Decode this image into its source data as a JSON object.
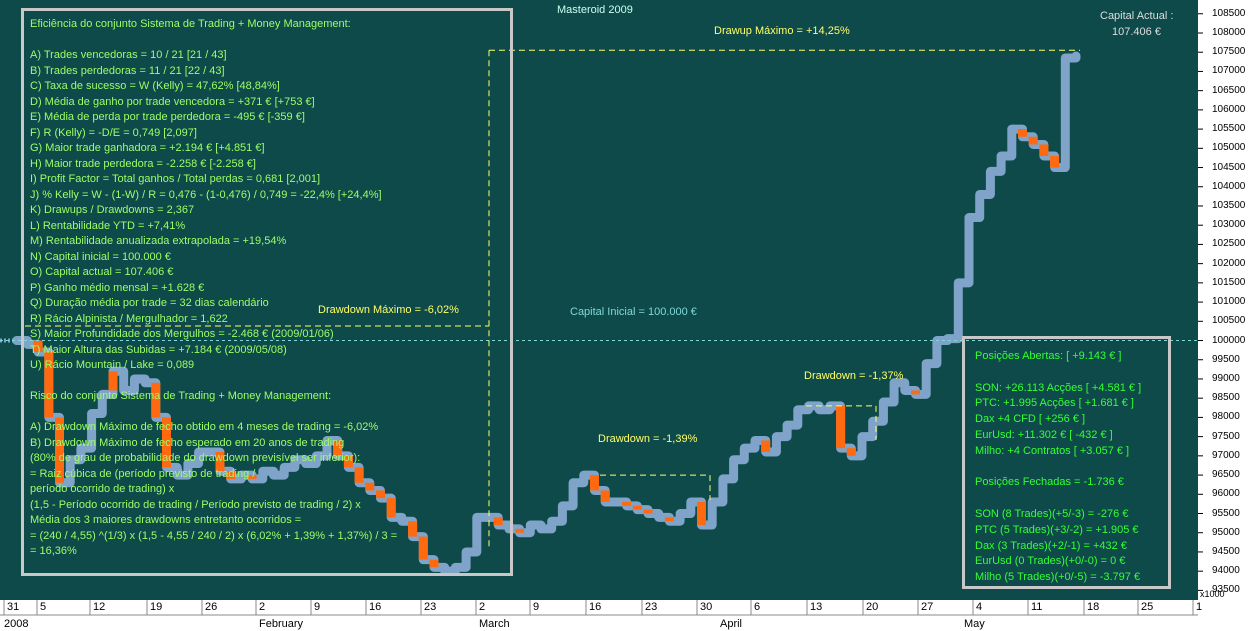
{
  "chart_data": {
    "type": "candlestick-equity",
    "title": "Masteroid 2009",
    "y_unit_label": "x1000",
    "ylim": [
      93250,
      108650
    ],
    "y_ticks": [
      93500,
      94000,
      94500,
      95000,
      95500,
      96000,
      96500,
      97000,
      97500,
      98000,
      98500,
      99000,
      99500,
      100000,
      100500,
      101000,
      101500,
      102000,
      102500,
      103000,
      103500,
      104000,
      104500,
      105000,
      105500,
      106000,
      106500,
      107000,
      107500,
      108000,
      108500
    ],
    "y_tick_labels": [
      "93500",
      "94000",
      "94500",
      "95000",
      "95500",
      "96000",
      "96500",
      "97000",
      "97500",
      "98000",
      "98500",
      "99000",
      "99500",
      "100000",
      "100500",
      "101000",
      "101500",
      "102000",
      "102500",
      "103000",
      "103500",
      "104000",
      "104500",
      "105000",
      "105500",
      "106000",
      "106500",
      "107000",
      "107500",
      "108000",
      "108500"
    ],
    "x_tick_labels": [
      "31",
      "5",
      "12",
      "19",
      "26",
      "2",
      "9",
      "16",
      "23",
      "2",
      "9",
      "16",
      "23",
      "30",
      "6",
      "13",
      "20",
      "27",
      "4",
      "11",
      "18",
      "25",
      "1"
    ],
    "month_labels": [
      "2008",
      "February",
      "March",
      "April",
      "May"
    ],
    "capital_actual_label": "Capital Actual :",
    "capital_actual_value": "107.406 €",
    "capital_inicial_line": 100000,
    "capital_inicial_label": "Capital Inicial = 100.000 €",
    "drawup_max_level": 107550,
    "drawup_max_label": "Drawup Máximo = +14,25%",
    "drawdown_max_label": "Drawdown Máximo = -6,02%",
    "drawdown_1_label": "Drawdown = -1,39%",
    "drawdown_1_level": 96500,
    "drawdown_2_label": "Drawdown = -1,37%",
    "drawdown_2_level": 98300,
    "equity_points": [
      [
        1,
        100000
      ],
      [
        2,
        99900
      ],
      [
        3,
        99700
      ],
      [
        4,
        98000
      ],
      [
        5,
        96300
      ],
      [
        6,
        96900
      ],
      [
        7,
        97200
      ],
      [
        8,
        98100
      ],
      [
        9,
        98600
      ],
      [
        10,
        99200
      ],
      [
        11,
        98700
      ],
      [
        12,
        99000
      ],
      [
        13,
        98900
      ],
      [
        14,
        98000
      ],
      [
        15,
        96700
      ],
      [
        16,
        96500
      ],
      [
        17,
        96800
      ],
      [
        18,
        97100
      ],
      [
        19,
        97100
      ],
      [
        20,
        96600
      ],
      [
        21,
        96400
      ],
      [
        22,
        96500
      ],
      [
        23,
        96400
      ],
      [
        24,
        96600
      ],
      [
        25,
        96500
      ],
      [
        26,
        96700
      ],
      [
        27,
        96900
      ],
      [
        28,
        96800
      ],
      [
        29,
        97000
      ],
      [
        30,
        97400
      ],
      [
        31,
        97000
      ],
      [
        32,
        96700
      ],
      [
        33,
        96300
      ],
      [
        34,
        96100
      ],
      [
        35,
        95900
      ],
      [
        36,
        95400
      ],
      [
        37,
        95300
      ],
      [
        38,
        94900
      ],
      [
        39,
        94300
      ],
      [
        40,
        94100
      ],
      [
        41,
        94000
      ],
      [
        42,
        94100
      ],
      [
        43,
        94500
      ],
      [
        44,
        95400
      ],
      [
        45,
        95400
      ],
      [
        46,
        95200
      ],
      [
        47,
        95100
      ],
      [
        48,
        95000
      ],
      [
        49,
        95200
      ],
      [
        50,
        95100
      ],
      [
        51,
        95300
      ],
      [
        52,
        95700
      ],
      [
        53,
        96300
      ],
      [
        54,
        96500
      ],
      [
        55,
        96100
      ],
      [
        56,
        95800
      ],
      [
        57,
        95800
      ],
      [
        58,
        95700
      ],
      [
        59,
        95600
      ],
      [
        60,
        95500
      ],
      [
        61,
        95400
      ],
      [
        62,
        95300
      ],
      [
        63,
        95500
      ],
      [
        64,
        95800
      ],
      [
        65,
        95200
      ],
      [
        66,
        95800
      ],
      [
        67,
        96400
      ],
      [
        68,
        96900
      ],
      [
        69,
        97200
      ],
      [
        70,
        97400
      ],
      [
        71,
        97100
      ],
      [
        72,
        97500
      ],
      [
        73,
        97800
      ],
      [
        74,
        98200
      ],
      [
        75,
        98300
      ],
      [
        76,
        98200
      ],
      [
        77,
        98300
      ],
      [
        78,
        97200
      ],
      [
        79,
        97000
      ],
      [
        80,
        97500
      ],
      [
        81,
        97900
      ],
      [
        82,
        98400
      ],
      [
        83,
        98900
      ],
      [
        84,
        98700
      ],
      [
        85,
        98600
      ],
      [
        86,
        99400
      ],
      [
        87,
        100000
      ],
      [
        88,
        100050
      ],
      [
        89,
        101500
      ],
      [
        90,
        103200
      ],
      [
        91,
        103800
      ],
      [
        92,
        104400
      ],
      [
        93,
        104800
      ],
      [
        94,
        105500
      ],
      [
        95,
        105300
      ],
      [
        96,
        105100
      ],
      [
        97,
        104800
      ],
      [
        98,
        104500
      ],
      [
        99,
        107350
      ],
      [
        100,
        107400
      ]
    ],
    "drawdown_highlights": [
      [
        3,
        [
          99700,
          100000
        ]
      ],
      [
        4,
        [
          98000,
          99700
        ]
      ],
      [
        5,
        [
          96300,
          98000
        ]
      ],
      [
        10,
        [
          98700,
          99200
        ]
      ],
      [
        14,
        [
          98000,
          98900
        ]
      ],
      [
        15,
        [
          96700,
          98000
        ]
      ],
      [
        20,
        [
          96600,
          97100
        ]
      ],
      [
        21,
        [
          96400,
          96600
        ]
      ],
      [
        23,
        [
          96400,
          96500
        ]
      ],
      [
        31,
        [
          97000,
          97400
        ]
      ],
      [
        32,
        [
          96700,
          97000
        ]
      ],
      [
        33,
        [
          96300,
          96700
        ]
      ],
      [
        34,
        [
          96100,
          96300
        ]
      ],
      [
        35,
        [
          95900,
          96100
        ]
      ],
      [
        36,
        [
          95400,
          95900
        ]
      ],
      [
        38,
        [
          94900,
          95300
        ]
      ],
      [
        39,
        [
          94300,
          94900
        ]
      ],
      [
        40,
        [
          94100,
          94300
        ]
      ],
      [
        46,
        [
          95200,
          95400
        ]
      ],
      [
        48,
        [
          95000,
          95100
        ]
      ],
      [
        55,
        [
          96100,
          96500
        ]
      ],
      [
        56,
        [
          95800,
          96100
        ]
      ],
      [
        58,
        [
          95700,
          95800
        ]
      ],
      [
        59,
        [
          95600,
          95700
        ]
      ],
      [
        60,
        [
          95500,
          95600
        ]
      ],
      [
        62,
        [
          95300,
          95400
        ]
      ],
      [
        65,
        [
          95200,
          95800
        ]
      ],
      [
        71,
        [
          97100,
          97400
        ]
      ],
      [
        78,
        [
          97200,
          98300
        ]
      ],
      [
        79,
        [
          97000,
          97200
        ]
      ],
      [
        85,
        [
          98600,
          98700
        ]
      ],
      [
        95,
        [
          105300,
          105500
        ]
      ],
      [
        96,
        [
          105100,
          105300
        ]
      ],
      [
        97,
        [
          104800,
          105100
        ]
      ],
      [
        98,
        [
          104500,
          104800
        ]
      ]
    ]
  },
  "left_panel": {
    "lines": [
      "Eficiência do conjunto Sistema de Trading + Money Management:",
      "",
      "A) Trades vencedoras = 10 / 21   [21 / 43]",
      "B) Trades perdedoras = 11 / 21   [22 / 43]",
      "C) Taxa de sucesso = W (Kelly) = 47,62%   [48,84%]",
      "D) Média de ganho por trade vencedora = +371 €   [+753 €]",
      "E) Média de perda por trade perdedora = -495 €   [-359 €]",
      "F) R (Kelly) = -D/E = 0,749   [2,097]",
      "G) Maior trade ganhadora = +2.194 €   [+4.851 €]",
      "H) Maior trade perdedora = -2.258 €   [-2.258 €]",
      "I) Profit Factor = Total ganhos / Total perdas = 0,681   [2,001]",
      "J) % Kelly = W - (1-W) / R = 0,476 - (1-0,476) / 0,749 = -22,4%   [+24,4%]",
      "K) Drawups / Drawdowns = 2,367",
      "L) Rentabilidade YTD = +7,41%",
      "M) Rentabilidade anualizada extrapolada = +19,54%",
      "N) Capital inicial = 100.000 €",
      "O) Capital actual = 107.406 €",
      "P) Ganho médio mensal = +1.628 €",
      "Q) Duração média por trade = 32 dias calendário",
      "R) Rácio Alpinista / Mergulhador = 1,622",
      "S) Maior Profundidade dos Mergulhos = -2.468 € (2009/01/06)",
      "T) Maior Altura das Subidas = +7.184 € (2009/05/08)",
      "U) Rácio Mountain / Lake = 0,089",
      "",
      "Risco do conjunto Sistema de Trading + Money Management:",
      "",
      "A) Drawdown Máximo de fecho obtido em 4 meses de trading = -6,02%",
      "B) Drawdown Máximo de fecho esperado em 20 anos de trading",
      "(80% de grau de probabilidade do drawdown previsível ser inferior):",
      "= Raiz cúbica de (período previsto de trading /",
      "período ocorrido de trading) x",
      "(1,5 - Período ocorrido de trading / Período previsto de trading / 2) x",
      "Média dos 3 maiores drawdowns entretanto ocorridos =",
      "= (240 / 4,55) ^(1/3) x (1,5 - 4,55 / 240 / 2) x (6,02% + 1,39% + 1,37%) / 3 =",
      "= 16,36%"
    ]
  },
  "right_panel": {
    "lines": [
      "Posições Abertas: [ +9.143 € ]",
      "",
      "SON: +26.113 Acções [ +4.581 € ]",
      "PTC: +1.995 Acções [ +1.681 € ]",
      "Dax +4 CFD [ +256 € ]",
      "EurUsd: +11.302 € [ -432 € ]",
      "Milho: +4 Contratos [ +3.057 € ]",
      "",
      "Posições Fechadas = -1.736 €",
      "",
      "SON (8 Trades)(+5/-3) = -276 €",
      "PTC (5 Trades)(+3/-2) = +1.905 €",
      "Dax (3 Trades)(+2/-1) = +432 €",
      "EurUsd (0 Trades)(+0/-0) = 0 €",
      "Milho (5 Trades)(+0/-5) = -3.797 €"
    ]
  },
  "colors": {
    "background": "#0f4a4a",
    "equity": "#7fa3c9",
    "drawdown": "#ff6a10",
    "panel_border": "#c8c8c8",
    "left_text": "#9cff66",
    "right_text": "#33ff33",
    "annotation": "#ffff66",
    "capital_line": "#7fd8d8",
    "axis_panel": "#ffffff"
  }
}
